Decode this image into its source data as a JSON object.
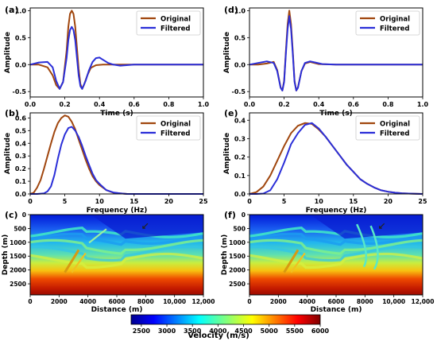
{
  "colors": {
    "original": "#a0460e",
    "filtered": "#2a2ed8",
    "legend_border": "#cccccc"
  },
  "colorbar": {
    "label": "Velocity (m/s)",
    "ticks": [
      2500,
      3000,
      3500,
      4000,
      4500,
      5000,
      5500,
      6000
    ],
    "range": [
      2300,
      6000
    ],
    "colormap": "jet"
  },
  "chart_data": [
    {
      "id": "a",
      "panel_label": "(a)",
      "type": "line",
      "xlabel": "Time (s)",
      "ylabel": "Amplitude",
      "xlim": [
        0,
        1
      ],
      "ylim": [
        -0.6,
        1.05
      ],
      "xticks": [
        "0.0",
        "0.2",
        "0.4",
        "0.6",
        "0.8",
        "1.0"
      ],
      "yticks": [
        "-0.5",
        "0.0",
        "0.5",
        "1.0"
      ],
      "legend": "top-right",
      "series": [
        {
          "name": "Original",
          "x": [
            0,
            0.05,
            0.1,
            0.13,
            0.15,
            0.17,
            0.19,
            0.21,
            0.22,
            0.23,
            0.24,
            0.25,
            0.26,
            0.27,
            0.28,
            0.29,
            0.3,
            0.31,
            0.33,
            0.35,
            0.38,
            0.42,
            0.5,
            1.0
          ],
          "y": [
            0,
            0,
            -0.05,
            -0.2,
            -0.38,
            -0.45,
            -0.32,
            0.25,
            0.7,
            0.94,
            1.0,
            0.94,
            0.7,
            0.3,
            -0.08,
            -0.36,
            -0.45,
            -0.38,
            -0.2,
            -0.06,
            -0.01,
            0,
            0,
            0
          ]
        },
        {
          "name": "Filtered",
          "x": [
            0,
            0.05,
            0.1,
            0.13,
            0.15,
            0.17,
            0.19,
            0.21,
            0.22,
            0.23,
            0.24,
            0.25,
            0.26,
            0.27,
            0.28,
            0.29,
            0.3,
            0.32,
            0.34,
            0.36,
            0.38,
            0.4,
            0.42,
            0.45,
            0.48,
            0.52,
            0.6,
            1.0
          ],
          "y": [
            0,
            0.04,
            0.05,
            -0.05,
            -0.3,
            -0.45,
            -0.32,
            0.12,
            0.45,
            0.64,
            0.7,
            0.64,
            0.45,
            0.12,
            -0.2,
            -0.4,
            -0.45,
            -0.3,
            -0.1,
            0.05,
            0.12,
            0.13,
            0.09,
            0.03,
            0,
            -0.02,
            0,
            0
          ]
        }
      ]
    },
    {
      "id": "d",
      "panel_label": "(d)",
      "type": "line",
      "xlabel": "Time (s)",
      "ylabel": "Amplitude",
      "xlim": [
        0,
        1
      ],
      "ylim": [
        -0.6,
        1.05
      ],
      "xticks": [
        "0.0",
        "0.2",
        "0.4",
        "0.6",
        "0.8",
        "1.0"
      ],
      "yticks": [
        "-0.5",
        "0.0",
        "0.5",
        "1.0"
      ],
      "legend": "top-right",
      "series": [
        {
          "name": "Original",
          "x": [
            0,
            0.05,
            0.1,
            0.14,
            0.16,
            0.18,
            0.19,
            0.2,
            0.21,
            0.22,
            0.23,
            0.24,
            0.25,
            0.26,
            0.27,
            0.28,
            0.3,
            0.32,
            0.35,
            0.4,
            0.5,
            1.0
          ],
          "y": [
            0,
            0,
            0.02,
            0.05,
            -0.1,
            -0.42,
            -0.48,
            -0.3,
            0.25,
            0.75,
            1.0,
            0.75,
            0.25,
            -0.3,
            -0.48,
            -0.42,
            -0.12,
            0.02,
            0.05,
            0.01,
            0,
            0
          ]
        },
        {
          "name": "Filtered",
          "x": [
            0,
            0.05,
            0.1,
            0.14,
            0.16,
            0.18,
            0.19,
            0.2,
            0.21,
            0.22,
            0.23,
            0.24,
            0.25,
            0.26,
            0.27,
            0.28,
            0.3,
            0.32,
            0.35,
            0.38,
            0.42,
            0.5,
            1.0
          ],
          "y": [
            0,
            0.03,
            0.06,
            0.03,
            -0.12,
            -0.43,
            -0.48,
            -0.32,
            0.2,
            0.66,
            0.9,
            0.66,
            0.2,
            -0.32,
            -0.48,
            -0.43,
            -0.12,
            0.03,
            0.06,
            0.04,
            0.01,
            0,
            0
          ]
        }
      ]
    },
    {
      "id": "b",
      "panel_label": "(b)",
      "type": "line",
      "xlabel": "Frequency (Hz)",
      "ylabel": "Amplitude",
      "xlim": [
        0,
        25
      ],
      "ylim": [
        0,
        0.64
      ],
      "xticks": [
        "0",
        "5",
        "10",
        "15",
        "20",
        "25"
      ],
      "yticks": [
        "0.0",
        "0.1",
        "0.2",
        "0.3",
        "0.4",
        "0.5",
        "0.6"
      ],
      "legend": "top-right",
      "series": [
        {
          "name": "Original",
          "x": [
            0,
            0.5,
            1,
            1.5,
            2,
            2.5,
            3,
            3.5,
            4,
            4.5,
            5,
            5.5,
            6,
            6.5,
            7,
            7.5,
            8,
            8.5,
            9,
            9.5,
            10,
            11,
            12,
            13,
            14,
            15,
            17,
            20,
            25
          ],
          "y": [
            0,
            0.01,
            0.05,
            0.11,
            0.2,
            0.3,
            0.4,
            0.49,
            0.56,
            0.6,
            0.62,
            0.61,
            0.57,
            0.51,
            0.43,
            0.35,
            0.27,
            0.2,
            0.14,
            0.1,
            0.07,
            0.03,
            0.01,
            0.005,
            0,
            0,
            0,
            0,
            0
          ]
        },
        {
          "name": "Filtered",
          "x": [
            0,
            1,
            2,
            2.5,
            3,
            3.5,
            4,
            4.5,
            5,
            5.5,
            6,
            6.5,
            7,
            7.5,
            8,
            8.5,
            9,
            9.5,
            10,
            11,
            12,
            13,
            14,
            15,
            17,
            20,
            25
          ],
          "y": [
            0,
            0,
            0.005,
            0.02,
            0.06,
            0.15,
            0.28,
            0.39,
            0.47,
            0.52,
            0.53,
            0.5,
            0.45,
            0.38,
            0.3,
            0.23,
            0.16,
            0.11,
            0.08,
            0.03,
            0.012,
            0.005,
            0,
            0,
            0,
            0,
            0
          ]
        }
      ]
    },
    {
      "id": "e",
      "panel_label": "(e)",
      "type": "line",
      "xlabel": "Frequency (Hz)",
      "ylabel": "Amplitude",
      "xlim": [
        0,
        25
      ],
      "ylim": [
        0,
        0.44
      ],
      "xticks": [
        "0",
        "5",
        "10",
        "15",
        "20",
        "25"
      ],
      "yticks": [
        "0.0",
        "0.1",
        "0.2",
        "0.3",
        "0.4"
      ],
      "legend": "top-right",
      "series": [
        {
          "name": "Original",
          "x": [
            0,
            1,
            2,
            3,
            4,
            5,
            6,
            7,
            8,
            9,
            10,
            11,
            12,
            13,
            14,
            15,
            16,
            17,
            18,
            19,
            20,
            21,
            22,
            23,
            24,
            25
          ],
          "y": [
            0,
            0.01,
            0.04,
            0.1,
            0.18,
            0.26,
            0.33,
            0.37,
            0.385,
            0.38,
            0.35,
            0.31,
            0.26,
            0.21,
            0.16,
            0.12,
            0.08,
            0.055,
            0.035,
            0.02,
            0.012,
            0.007,
            0.004,
            0.002,
            0.001,
            0
          ]
        },
        {
          "name": "Filtered",
          "x": [
            0,
            1,
            2,
            3,
            4,
            5,
            5.5,
            6,
            7,
            8,
            9,
            10,
            11,
            12,
            13,
            14,
            15,
            16,
            17,
            18,
            19,
            20,
            21,
            22,
            23,
            24,
            25
          ],
          "y": [
            0,
            0,
            0.002,
            0.02,
            0.08,
            0.17,
            0.22,
            0.27,
            0.33,
            0.375,
            0.385,
            0.355,
            0.31,
            0.26,
            0.21,
            0.16,
            0.12,
            0.08,
            0.055,
            0.035,
            0.02,
            0.012,
            0.007,
            0.004,
            0.002,
            0.001,
            0
          ]
        }
      ]
    },
    {
      "id": "c",
      "panel_label": "(c)",
      "type": "heatmap",
      "xlabel": "Distance (m)",
      "ylabel": "Depth (m)",
      "xlim": [
        0,
        12000
      ],
      "ylim": [
        2900,
        0
      ],
      "xticks": [
        "0",
        "2000",
        "4000",
        "6000",
        "8000",
        "10,000",
        "12,000"
      ],
      "yticks": [
        "0",
        "500",
        "1000",
        "1500",
        "2000",
        "2500"
      ]
    },
    {
      "id": "f",
      "panel_label": "(f)",
      "type": "heatmap",
      "xlabel": "Distance (m)",
      "ylabel": "Depth (m)",
      "xlim": [
        0,
        12000
      ],
      "ylim": [
        2900,
        0
      ],
      "xticks": [
        "0",
        "2000",
        "4000",
        "6000",
        "8000",
        "10,000",
        "12,000"
      ],
      "yticks": [
        "0",
        "500",
        "1000",
        "1500",
        "2000",
        "2500"
      ]
    }
  ]
}
